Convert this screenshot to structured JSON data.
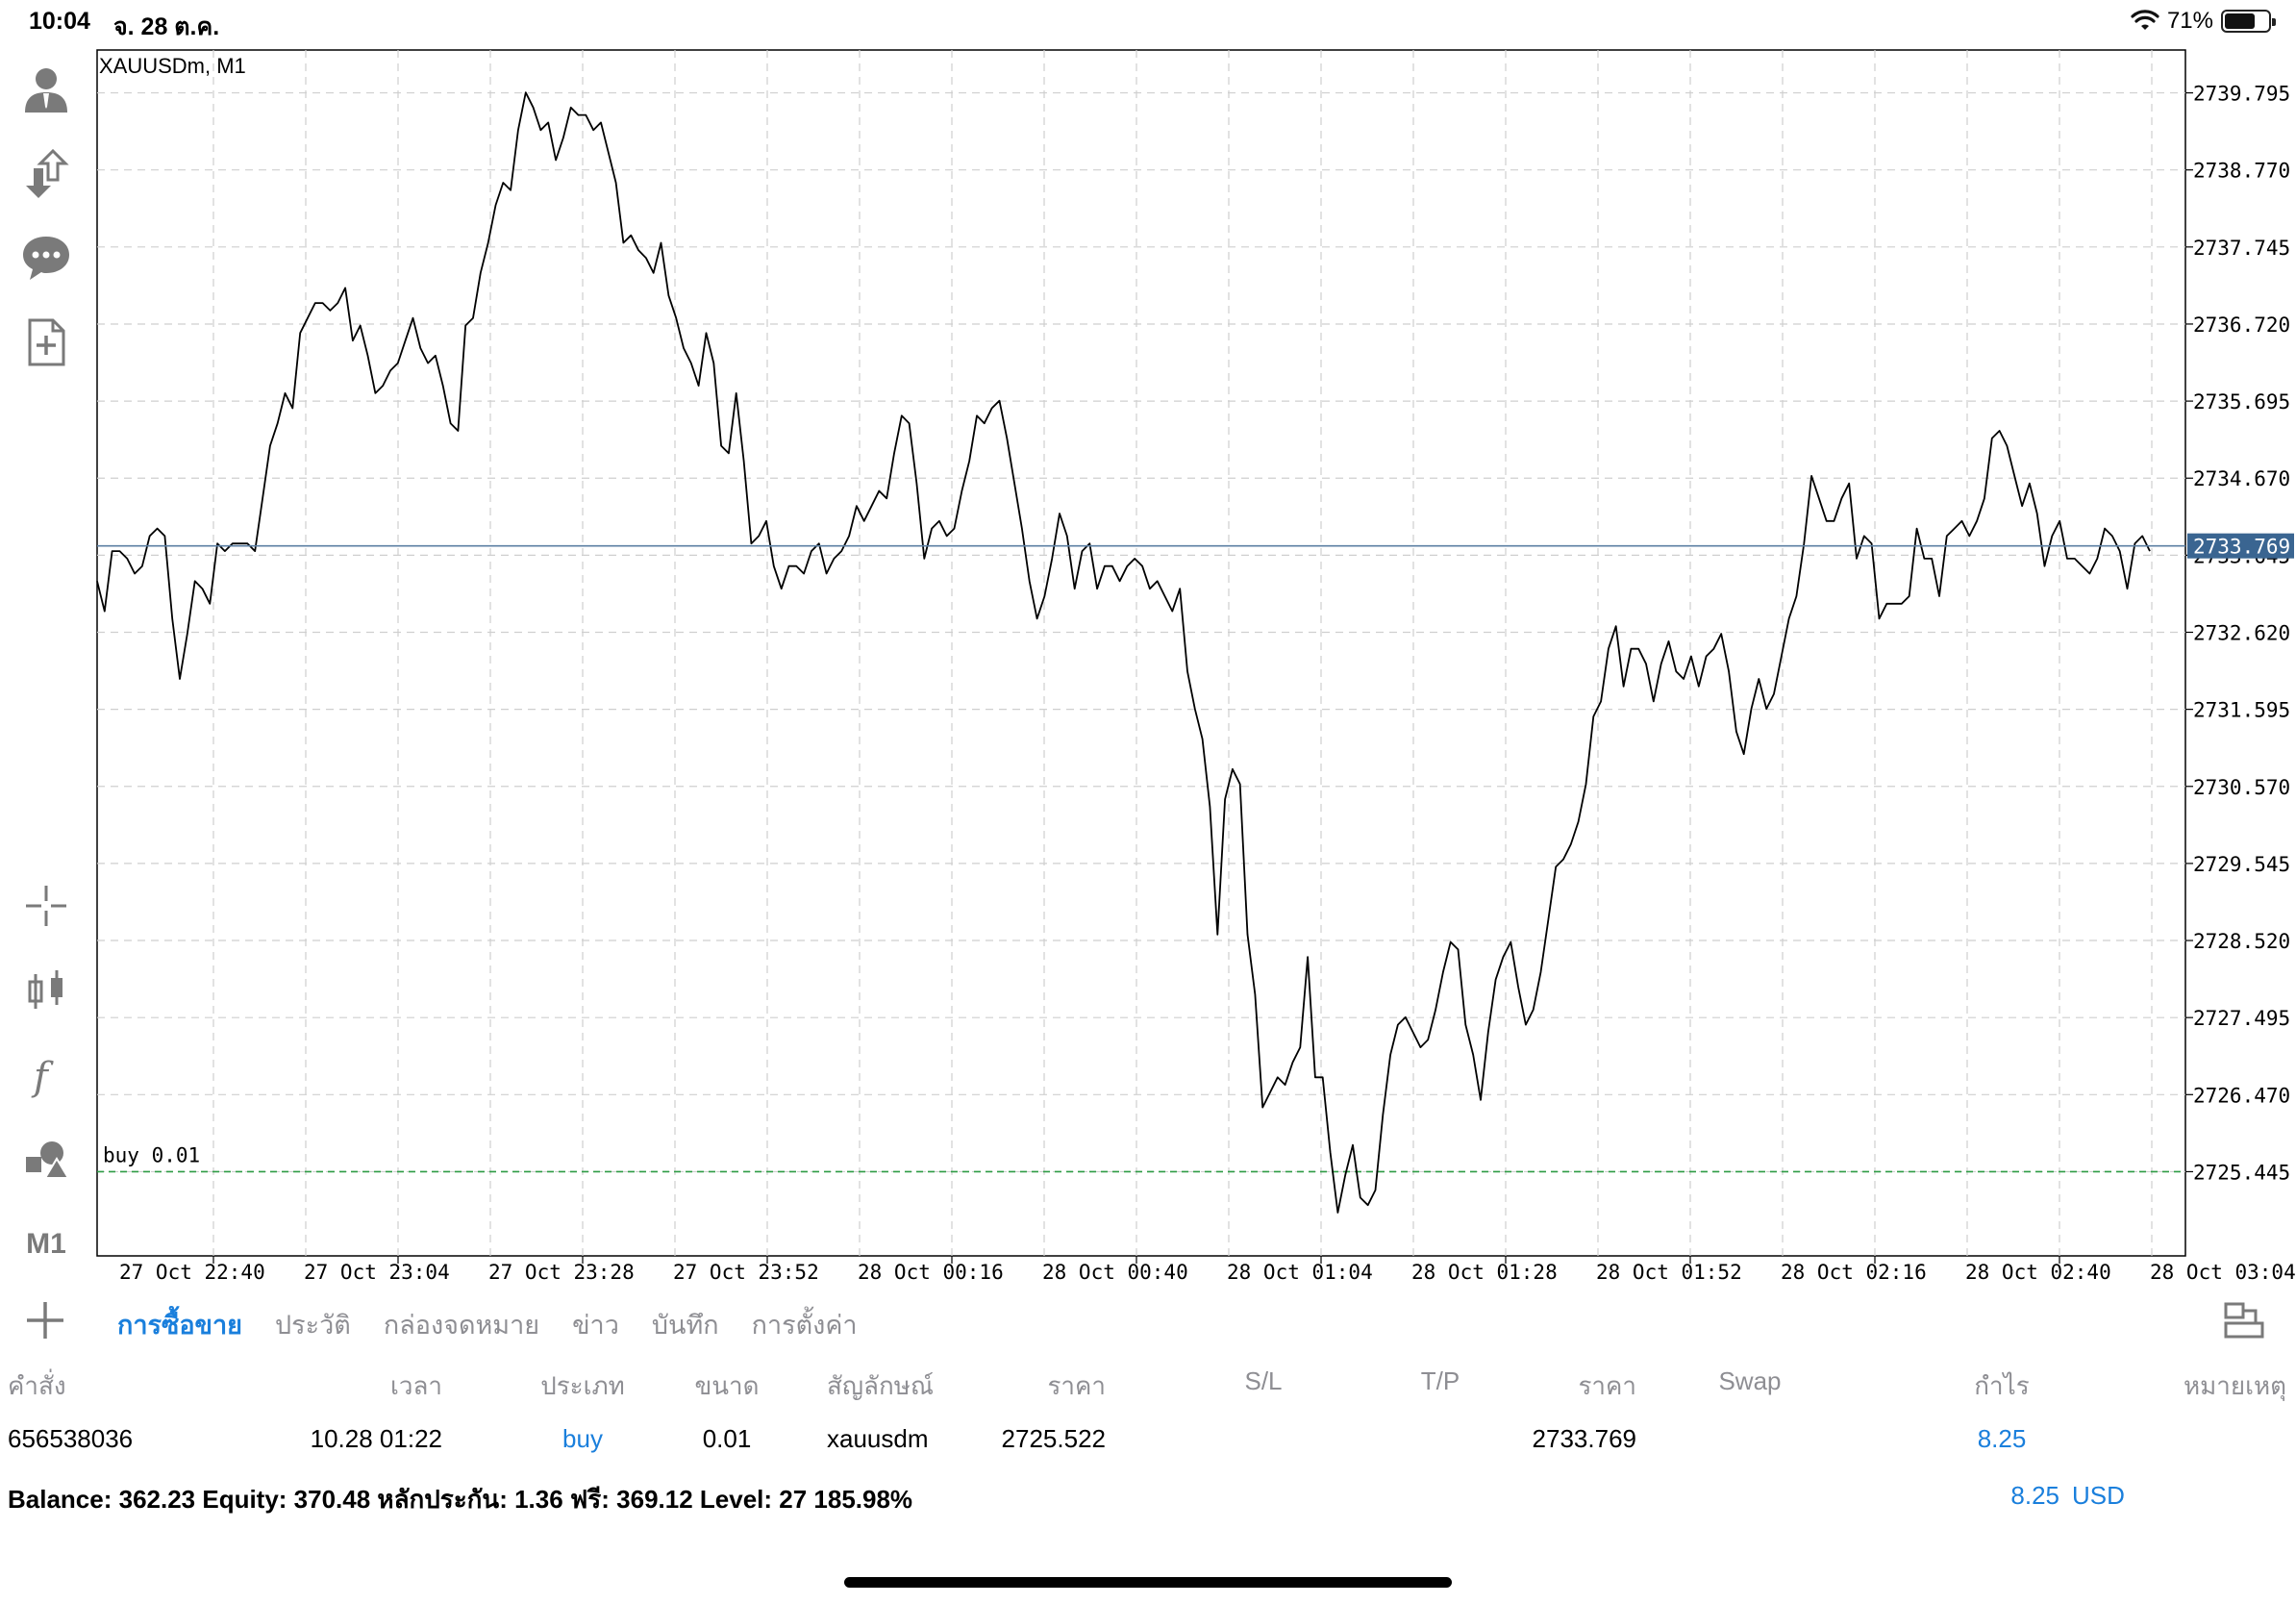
{
  "status_bar": {
    "time": "10:04",
    "date": "จ. 28 ต.ค.",
    "battery_percent_label": "71%",
    "battery_level": 0.71
  },
  "toolbar": {
    "icons": [
      "account-icon",
      "trade-icon",
      "chat-icon",
      "new-document-icon",
      "crosshair-icon",
      "chart-type-icon",
      "indicators-icon",
      "objects-icon"
    ],
    "timeframe_label": "M1"
  },
  "chart": {
    "symbol_label": "XAUUSDm, M1",
    "current_price_label": "2733.769",
    "order_line_label": "buy 0.01",
    "colors": {
      "price_line": "#000000",
      "bid_line": "#5c7fa3",
      "bid_tag_bg": "#3a6591",
      "order_line": "#2e9b44",
      "grid": "#cfcfcf"
    }
  },
  "chart_data": {
    "type": "line",
    "title": "XAUUSDm, M1",
    "x_tick_labels": [
      "27 Oct 22:40",
      "27 Oct 23:04",
      "27 Oct 23:28",
      "27 Oct 23:52",
      "28 Oct 00:16",
      "28 Oct 00:40",
      "28 Oct 01:04",
      "28 Oct 01:28",
      "28 Oct 01:52",
      "28 Oct 02:16",
      "28 Oct 02:40",
      "28 Oct 03:04"
    ],
    "y_tick_labels": [
      "2739.795",
      "2738.770",
      "2737.745",
      "2736.720",
      "2735.695",
      "2734.670",
      "2733.645",
      "2732.620",
      "2731.595",
      "2730.570",
      "2729.545",
      "2728.520",
      "2727.495",
      "2726.470",
      "2725.445"
    ],
    "y_ticks": [
      2739.795,
      2738.77,
      2737.745,
      2736.72,
      2735.695,
      2734.67,
      2733.645,
      2732.62,
      2731.595,
      2730.57,
      2729.545,
      2728.52,
      2727.495,
      2726.47,
      2725.445
    ],
    "ylim": [
      2724.325,
      2740.365
    ],
    "grid": true,
    "horizontal_lines": [
      {
        "label": "2733.769",
        "value": 2733.769
      },
      {
        "label": "buy 0.01",
        "value": 2725.445
      }
    ],
    "series": [
      {
        "values": [
          2733.3,
          2732.9,
          2733.7,
          2733.7,
          2733.6,
          2733.4,
          2733.5,
          2733.9,
          2734.0,
          2733.9,
          2732.8,
          2732.0,
          2732.6,
          2733.3,
          2733.2,
          2733.0,
          2733.8,
          2733.7,
          2733.8,
          2733.8,
          2733.8,
          2733.7,
          2734.4,
          2735.1,
          2735.4,
          2735.8,
          2735.6,
          2736.6,
          2736.8,
          2737.0,
          2737.0,
          2736.9,
          2737.0,
          2737.2,
          2736.5,
          2736.7,
          2736.3,
          2735.8,
          2735.9,
          2736.1,
          2736.2,
          2736.5,
          2736.8,
          2736.4,
          2736.2,
          2736.3,
          2735.9,
          2735.4,
          2735.3,
          2736.7,
          2736.8,
          2737.4,
          2737.8,
          2738.3,
          2738.6,
          2738.5,
          2739.3,
          2739.8,
          2739.6,
          2739.3,
          2739.4,
          2738.9,
          2739.2,
          2739.6,
          2739.5,
          2739.5,
          2739.3,
          2739.4,
          2739.0,
          2738.6,
          2737.8,
          2737.9,
          2737.7,
          2737.6,
          2737.4,
          2737.8,
          2737.1,
          2736.8,
          2736.4,
          2736.2,
          2735.9,
          2736.6,
          2736.2,
          2735.1,
          2735.0,
          2735.8,
          2734.9,
          2733.8,
          2733.9,
          2734.1,
          2733.5,
          2733.2,
          2733.5,
          2733.5,
          2733.4,
          2733.7,
          2733.8,
          2733.4,
          2733.6,
          2733.7,
          2733.9,
          2734.3,
          2734.1,
          2734.3,
          2734.5,
          2734.4,
          2735.0,
          2735.5,
          2735.4,
          2734.6,
          2733.6,
          2734.0,
          2734.1,
          2733.9,
          2734.0,
          2734.5,
          2734.9,
          2735.5,
          2735.4,
          2735.6,
          2735.7,
          2735.2,
          2734.6,
          2734.0,
          2733.3,
          2732.8,
          2733.1,
          2733.6,
          2734.2,
          2733.9,
          2733.2,
          2733.7,
          2733.8,
          2733.2,
          2733.5,
          2733.5,
          2733.3,
          2733.5,
          2733.6,
          2733.5,
          2733.2,
          2733.3,
          2733.1,
          2732.9,
          2733.2,
          2732.1,
          2731.6,
          2731.2,
          2730.3,
          2728.6,
          2730.4,
          2730.8,
          2730.6,
          2728.6,
          2727.8,
          2726.3,
          2726.5,
          2726.7,
          2726.6,
          2726.9,
          2727.1,
          2728.3,
          2726.7,
          2726.7,
          2725.7,
          2724.9,
          2725.4,
          2725.8,
          2725.1,
          2725.0,
          2725.2,
          2726.2,
          2727.0,
          2727.4,
          2727.5,
          2727.3,
          2727.1,
          2727.2,
          2727.6,
          2728.1,
          2728.5,
          2728.4,
          2727.4,
          2727.0,
          2726.4,
          2727.3,
          2728.0,
          2728.3,
          2728.5,
          2727.9,
          2727.4,
          2727.6,
          2728.1,
          2728.8,
          2729.5,
          2729.6,
          2729.8,
          2730.1,
          2730.6,
          2731.5,
          2731.7,
          2732.4,
          2732.7,
          2731.9,
          2732.4,
          2732.4,
          2732.2,
          2731.7,
          2732.2,
          2732.5,
          2732.1,
          2732.0,
          2732.3,
          2731.9,
          2732.3,
          2732.4,
          2732.6,
          2732.1,
          2731.3,
          2731.0,
          2731.6,
          2732.0,
          2731.6,
          2731.8,
          2732.3,
          2732.8,
          2733.1,
          2733.8,
          2734.7,
          2734.4,
          2734.1,
          2734.1,
          2734.4,
          2734.6,
          2733.6,
          2733.9,
          2733.8,
          2732.8,
          2733.0,
          2733.0,
          2733.0,
          2733.1,
          2734.0,
          2733.6,
          2733.6,
          2733.1,
          2733.9,
          2734.0,
          2734.1,
          2733.9,
          2734.1,
          2734.4,
          2735.2,
          2735.3,
          2735.1,
          2734.7,
          2734.3,
          2734.6,
          2734.2,
          2733.5,
          2733.9,
          2734.1,
          2733.6,
          2733.6,
          2733.5,
          2733.4,
          2733.6,
          2734.0,
          2733.9,
          2733.7,
          2733.2,
          2733.8,
          2733.9,
          2733.7
        ]
      }
    ]
  },
  "tabs": {
    "items": [
      "การซื้อขาย",
      "ประวัติ",
      "กล่องจดหมาย",
      "ข่าว",
      "บันทึก",
      "การตั้งค่า"
    ],
    "active": "การซื้อขาย"
  },
  "trades_table": {
    "headers": {
      "order": "คำสั่ง",
      "time": "เวลา",
      "type": "ประเภท",
      "size": "ขนาด",
      "symbol": "สัญลักษณ์",
      "open_price": "ราคา",
      "sl": "S/L",
      "tp": "T/P",
      "price": "ราคา",
      "swap": "Swap",
      "profit": "กำไร",
      "note": "หมายเหตุ"
    },
    "rows": [
      {
        "order": "656538036",
        "time": "10.28 01:22",
        "type": "buy",
        "size": "0.01",
        "symbol": "xauusdm",
        "open_price": "2725.522",
        "price": "2733.769",
        "profit": "8.25"
      }
    ]
  },
  "summary": {
    "text": "Balance: 362.23 Equity: 370.48 หลักประกัน: 1.36 ฟรี: 369.12 Level: 27 185.98%",
    "profit": "8.25",
    "currency": "USD"
  }
}
